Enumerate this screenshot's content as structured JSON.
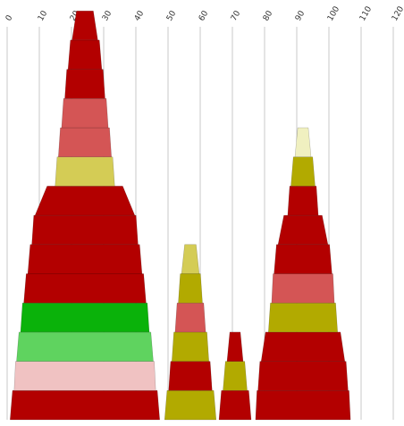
{
  "chart_data": {
    "type": "bar",
    "x_ticks": [
      "0",
      "10",
      "20",
      "30",
      "40",
      "50",
      "60",
      "70",
      "80",
      "90",
      "100",
      "110",
      "120"
    ],
    "xlim": [
      0,
      120
    ],
    "grid": true,
    "legend": "none",
    "stacks": [
      {
        "blocks": [
          {
            "width": 46.5,
            "color": "#b30000"
          },
          {
            "width": 44.0,
            "color": "#f0c2c2"
          },
          {
            "width": 42.5,
            "color": "#5fd35f"
          },
          {
            "width": 40.0,
            "color": "#0ab20a"
          },
          {
            "width": 38.0,
            "color": "#b30000"
          },
          {
            "width": 35.5,
            "color": "#b30000"
          },
          {
            "width": 33.0,
            "color": "#b30000"
          },
          {
            "width": 31.0,
            "color": "#b30000"
          },
          {
            "width": 18.5,
            "color": "#d4cc55"
          },
          {
            "width": 16.5,
            "color": "#d45555"
          },
          {
            "width": 14.5,
            "color": "#d45555"
          },
          {
            "width": 12.5,
            "color": "#b30000"
          },
          {
            "width": 10.5,
            "color": "#b30000"
          },
          {
            "width": 8.0,
            "color": "#b30000"
          }
        ]
      },
      {
        "blocks": [
          {
            "width": 16.0,
            "color": "#b2aa00"
          },
          {
            "width": 13.5,
            "color": "#b30000"
          },
          {
            "width": 11.5,
            "color": "#b2aa00"
          },
          {
            "width": 9.5,
            "color": "#d45555"
          },
          {
            "width": 7.5,
            "color": "#b2aa00"
          },
          {
            "width": 5.5,
            "color": "#d4cc55"
          }
        ]
      },
      {
        "blocks": [
          {
            "width": 10.0,
            "color": "#b30000"
          },
          {
            "width": 7.5,
            "color": "#b2aa00"
          },
          {
            "width": 5.0,
            "color": "#b30000"
          }
        ]
      },
      {
        "blocks": [
          {
            "width": 29.5,
            "color": "#b30000"
          },
          {
            "width": 28.0,
            "color": "#b30000"
          },
          {
            "width": 26.0,
            "color": "#b30000"
          },
          {
            "width": 21.5,
            "color": "#b2aa00"
          },
          {
            "width": 19.5,
            "color": "#d45555"
          },
          {
            "width": 18.0,
            "color": "#b30000"
          },
          {
            "width": 15.5,
            "color": "#b30000"
          },
          {
            "width": 9.5,
            "color": "#b30000"
          },
          {
            "width": 7.5,
            "color": "#b2aa00"
          },
          {
            "width": 5.0,
            "color": "#f0f0c0"
          }
        ]
      }
    ]
  }
}
